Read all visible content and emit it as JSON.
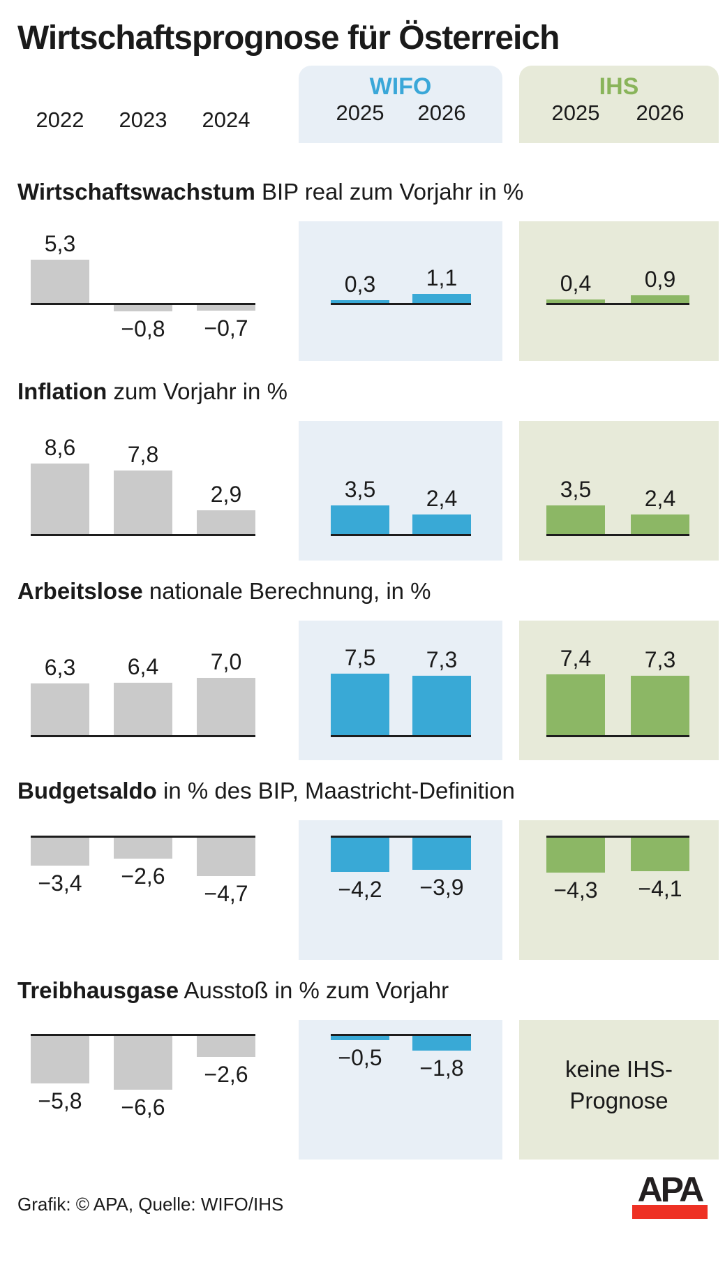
{
  "title": "Wirtschaftsprognose für Österreich",
  "header": {
    "history_years": [
      "2022",
      "2023",
      "2024"
    ],
    "wifo_label": "WIFO",
    "ihs_label": "IHS",
    "forecast_years": [
      "2025",
      "2026"
    ]
  },
  "chart_data": [
    {
      "type": "bar",
      "title": "Wirtschaftswachstum",
      "subtitle": "BIP real zum Vorjahr in %",
      "unit": "%",
      "categories": [
        "2022",
        "2023",
        "2024",
        "2025",
        "2026"
      ],
      "series": [
        {
          "name": "history",
          "years": [
            "2022",
            "2023",
            "2024"
          ],
          "values": [
            5.3,
            -0.8,
            -0.7
          ],
          "labels": [
            "5,3",
            "−0,8",
            "−0,7"
          ]
        },
        {
          "name": "WIFO",
          "years": [
            "2025",
            "2026"
          ],
          "values": [
            0.3,
            1.1
          ],
          "labels": [
            "0,3",
            "1,1"
          ]
        },
        {
          "name": "IHS",
          "years": [
            "2025",
            "2026"
          ],
          "values": [
            0.4,
            0.9
          ],
          "labels": [
            "0,4",
            "0,9"
          ]
        }
      ]
    },
    {
      "type": "bar",
      "title": "Inflation",
      "subtitle": "zum Vorjahr in %",
      "unit": "%",
      "categories": [
        "2022",
        "2023",
        "2024",
        "2025",
        "2026"
      ],
      "series": [
        {
          "name": "history",
          "years": [
            "2022",
            "2023",
            "2024"
          ],
          "values": [
            8.6,
            7.8,
            2.9
          ],
          "labels": [
            "8,6",
            "7,8",
            "2,9"
          ]
        },
        {
          "name": "WIFO",
          "years": [
            "2025",
            "2026"
          ],
          "values": [
            3.5,
            2.4
          ],
          "labels": [
            "3,5",
            "2,4"
          ]
        },
        {
          "name": "IHS",
          "years": [
            "2025",
            "2026"
          ],
          "values": [
            3.5,
            2.4
          ],
          "labels": [
            "3,5",
            "2,4"
          ]
        }
      ]
    },
    {
      "type": "bar",
      "title": "Arbeitslose",
      "subtitle": "nationale Berechnung, in %",
      "unit": "%",
      "categories": [
        "2022",
        "2023",
        "2024",
        "2025",
        "2026"
      ],
      "series": [
        {
          "name": "history",
          "years": [
            "2022",
            "2023",
            "2024"
          ],
          "values": [
            6.3,
            6.4,
            7.0
          ],
          "labels": [
            "6,3",
            "6,4",
            "7,0"
          ]
        },
        {
          "name": "WIFO",
          "years": [
            "2025",
            "2026"
          ],
          "values": [
            7.5,
            7.3
          ],
          "labels": [
            "7,5",
            "7,3"
          ]
        },
        {
          "name": "IHS",
          "years": [
            "2025",
            "2026"
          ],
          "values": [
            7.4,
            7.3
          ],
          "labels": [
            "7,4",
            "7,3"
          ]
        }
      ]
    },
    {
      "type": "bar",
      "title": "Budgetsaldo",
      "subtitle": "in % des BIP, Maastricht-Definition",
      "unit": "%",
      "categories": [
        "2022",
        "2023",
        "2024",
        "2025",
        "2026"
      ],
      "series": [
        {
          "name": "history",
          "years": [
            "2022",
            "2023",
            "2024"
          ],
          "values": [
            -3.4,
            -2.6,
            -4.7
          ],
          "labels": [
            "−3,4",
            "−2,6",
            "−4,7"
          ]
        },
        {
          "name": "WIFO",
          "years": [
            "2025",
            "2026"
          ],
          "values": [
            -4.2,
            -3.9
          ],
          "labels": [
            "−4,2",
            "−3,9"
          ]
        },
        {
          "name": "IHS",
          "years": [
            "2025",
            "2026"
          ],
          "values": [
            -4.3,
            -4.1
          ],
          "labels": [
            "−4,3",
            "−4,1"
          ]
        }
      ]
    },
    {
      "type": "bar",
      "title": "Treibhausgase",
      "subtitle": "Ausstoß in % zum Vorjahr",
      "unit": "%",
      "categories": [
        "2022",
        "2023",
        "2024",
        "2025",
        "2026"
      ],
      "series": [
        {
          "name": "history",
          "years": [
            "2022",
            "2023",
            "2024"
          ],
          "values": [
            -5.8,
            -6.6,
            -2.6
          ],
          "labels": [
            "−5,8",
            "−6,6",
            "−2,6"
          ]
        },
        {
          "name": "WIFO",
          "years": [
            "2025",
            "2026"
          ],
          "values": [
            -0.5,
            -1.8
          ],
          "labels": [
            "−0,5",
            "−1,8"
          ]
        },
        {
          "name": "IHS",
          "years": [],
          "values": [],
          "labels": [],
          "note": "keine IHS-Prognose"
        }
      ]
    }
  ],
  "no_forecast": {
    "line1": "keine IHS-",
    "line2": "Prognose"
  },
  "footer": {
    "credit": "Grafik: © APA, Quelle: WIFO/IHS",
    "logo_text": "APA"
  },
  "colors": {
    "wifo_accent": "#39a9d6",
    "wifo_panel": "#e8eff6",
    "ihs_accent": "#8cb765",
    "ihs_panel": "#e7ead9",
    "history_bar": "#cacaca",
    "text": "#1a1a1a",
    "apa_red": "#ee3124"
  }
}
